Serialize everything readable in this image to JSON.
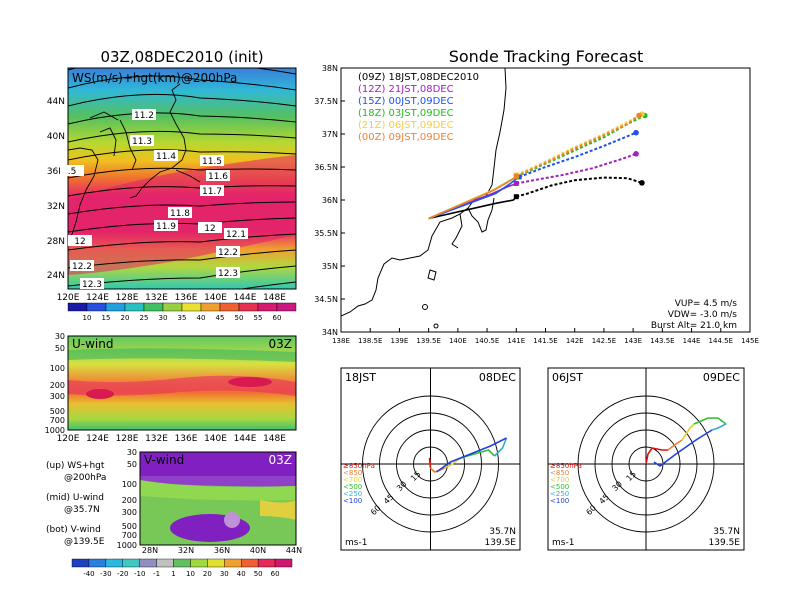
{
  "left": {
    "title": "03Z,08DEC2010 (init)",
    "map_label": "WS(m/s)+hgt(km)@200hPa",
    "lat_labels": [
      "44N",
      "40N",
      "36N",
      "32N",
      "28N",
      "24N"
    ],
    "lon_labels": [
      "120E",
      "124E",
      "128E",
      "132E",
      "136E",
      "140E",
      "144E",
      "148E"
    ],
    "contour_labels": [
      "11.2",
      "11.3",
      "11.4",
      "11.5",
      "11.6",
      "11.7",
      "11.8",
      "11.9",
      "12",
      "12.1",
      "12",
      "12.2",
      "12.2",
      "12.3",
      "12.3",
      ".5"
    ],
    "ws_colorbar": [
      "10",
      "15",
      "20",
      "25",
      "30",
      "35",
      "40",
      "45",
      "50",
      "55",
      "60"
    ],
    "uwind": {
      "label": "U-wind",
      "time": "03Z",
      "p_labels": [
        "30",
        "50",
        "100",
        "200",
        "300",
        "500",
        "700",
        "1000"
      ],
      "lon_labels": [
        "120E",
        "124E",
        "128E",
        "132E",
        "136E",
        "140E",
        "144E",
        "148E"
      ]
    },
    "vwind": {
      "label": "V-wind",
      "time": "03Z",
      "p_labels": [
        "30",
        "50",
        "100",
        "200",
        "300",
        "500",
        "700",
        "1000"
      ],
      "lat_labels": [
        "28N",
        "32N",
        "36N",
        "40N",
        "44N"
      ]
    },
    "legend_lines": [
      "(up) WS+hgt",
      "@200hPa",
      "(mid) U-wind",
      "@35.7N",
      "(bot) V-wind",
      "@139.5E"
    ],
    "wind_colorbar": [
      "-40",
      "-30",
      "-20",
      "-10",
      "-1",
      "1",
      "10",
      "20",
      "30",
      "40",
      "50",
      "60"
    ]
  },
  "right": {
    "title": "Sonde Tracking Forecast",
    "lat_labels": [
      "38N",
      "37.5N",
      "37N",
      "36.5N",
      "36N",
      "35.5N",
      "35N",
      "34.5N",
      "34N"
    ],
    "lon_labels": [
      "138E",
      "138.5E",
      "139E",
      "139.5E",
      "140E",
      "140.5E",
      "141E",
      "141.5E",
      "142E",
      "142.5E",
      "143E",
      "143.5E",
      "144E",
      "144.5E",
      "145E"
    ],
    "legend": [
      {
        "text": "(09Z)  18JST,08DEC2010",
        "color": "#000000"
      },
      {
        "text": "(12Z)  21JST,08DEC",
        "color": "#a020c0"
      },
      {
        "text": "(15Z)  00JST,09DEC",
        "color": "#2050f0"
      },
      {
        "text": "(18Z)  03JST,09DEC",
        "color": "#20c020"
      },
      {
        "text": "(21Z)  06JST,09DEC",
        "color": "#f0d040"
      },
      {
        "text": "(00Z)  09JST,09DEC",
        "color": "#f08030"
      }
    ],
    "params": [
      "VUP= 4.5 m/s",
      "VDW= -3.0 m/s",
      "Burst Alt= 21.0 km"
    ]
  },
  "hodo1": {
    "time": "18JST",
    "date": "08DEC",
    "rings": [
      "15",
      "30",
      "45",
      "60"
    ],
    "levels": [
      "≥850hPa",
      "<850",
      "<700",
      "<500",
      "<250",
      "<100"
    ],
    "unit": "ms-1",
    "loc1": "35.7N",
    "loc2": "139.5E"
  },
  "hodo2": {
    "time": "06JST",
    "date": "09DEC",
    "rings": [
      "15",
      "30",
      "45",
      "60"
    ],
    "levels": [
      "≥850hPa",
      "<850",
      "<700",
      "<500",
      "<250",
      "<100"
    ],
    "unit": "ms-1",
    "loc1": "35.7N",
    "loc2": "139.5E"
  },
  "chart_data": [
    {
      "type": "heatmap",
      "title": "03Z,08DEC2010 (init)",
      "subtitle": "WS(m/s)+hgt(km)@200hPa",
      "xlabel": "",
      "ylabel": "",
      "xlim": [
        120,
        150
      ],
      "ylim": [
        22,
        47
      ],
      "colorbar": [
        10,
        15,
        20,
        25,
        30,
        35,
        40,
        45,
        50,
        55,
        60
      ],
      "contour_labels": [
        11.2,
        11.3,
        11.4,
        11.5,
        11.6,
        11.7,
        11.8,
        11.9,
        12,
        12.1,
        12.2,
        12.3
      ]
    },
    {
      "type": "line",
      "title": "Sonde Tracking Forecast",
      "xlim": [
        138,
        145
      ],
      "ylim": [
        34,
        38
      ],
      "start": {
        "lon": 139.5,
        "lat": 35.72
      },
      "series": [
        {
          "name": "(09Z) 18JST,08DEC2010",
          "color": "#000000",
          "lon": [
            139.5,
            140.65,
            140.95,
            141.0,
            141.2,
            141.6,
            142.0,
            142.5,
            142.9,
            143.15
          ],
          "lat": [
            35.72,
            35.95,
            36.0,
            36.05,
            36.1,
            36.22,
            36.3,
            36.34,
            36.33,
            36.26
          ]
        },
        {
          "name": "(12Z) 21JST,08DEC",
          "color": "#a020c0",
          "lon": [
            139.5,
            140.6,
            140.85,
            141.0,
            141.3,
            141.8,
            142.3,
            142.8,
            143.05
          ],
          "lat": [
            35.72,
            36.1,
            36.2,
            36.25,
            36.3,
            36.38,
            36.48,
            36.62,
            36.7
          ]
        },
        {
          "name": "(15Z) 00JST,09DEC",
          "color": "#2050f0",
          "lon": [
            139.5,
            140.65,
            140.9,
            141.05,
            141.5,
            142.0,
            142.5,
            143.05
          ],
          "lat": [
            35.72,
            36.1,
            36.25,
            36.35,
            36.5,
            36.65,
            36.82,
            37.02
          ]
        },
        {
          "name": "(18Z) 03JST,09DEC",
          "color": "#20c020",
          "lon": [
            139.5,
            140.6,
            140.9,
            141.0,
            141.5,
            142.0,
            142.5,
            142.9,
            143.2
          ],
          "lat": [
            35.72,
            36.15,
            36.3,
            36.35,
            36.55,
            36.75,
            36.95,
            37.15,
            37.28
          ]
        },
        {
          "name": "(21Z) 06JST,09DEC",
          "color": "#f0d040",
          "lon": [
            139.5,
            140.6,
            140.95,
            141.0,
            141.5,
            142.0,
            142.5,
            142.9,
            143.15
          ],
          "lat": [
            35.72,
            36.15,
            36.32,
            36.38,
            36.58,
            36.8,
            37.0,
            37.18,
            37.3
          ]
        },
        {
          "name": "(00Z) 09JST,09DEC",
          "color": "#f08030",
          "lon": [
            139.5,
            140.6,
            140.95,
            141.0,
            141.5,
            142.0,
            142.5,
            142.9,
            143.1
          ],
          "lat": [
            35.72,
            36.14,
            36.32,
            36.36,
            36.56,
            36.78,
            36.98,
            37.15,
            37.28
          ]
        }
      ]
    }
  ]
}
